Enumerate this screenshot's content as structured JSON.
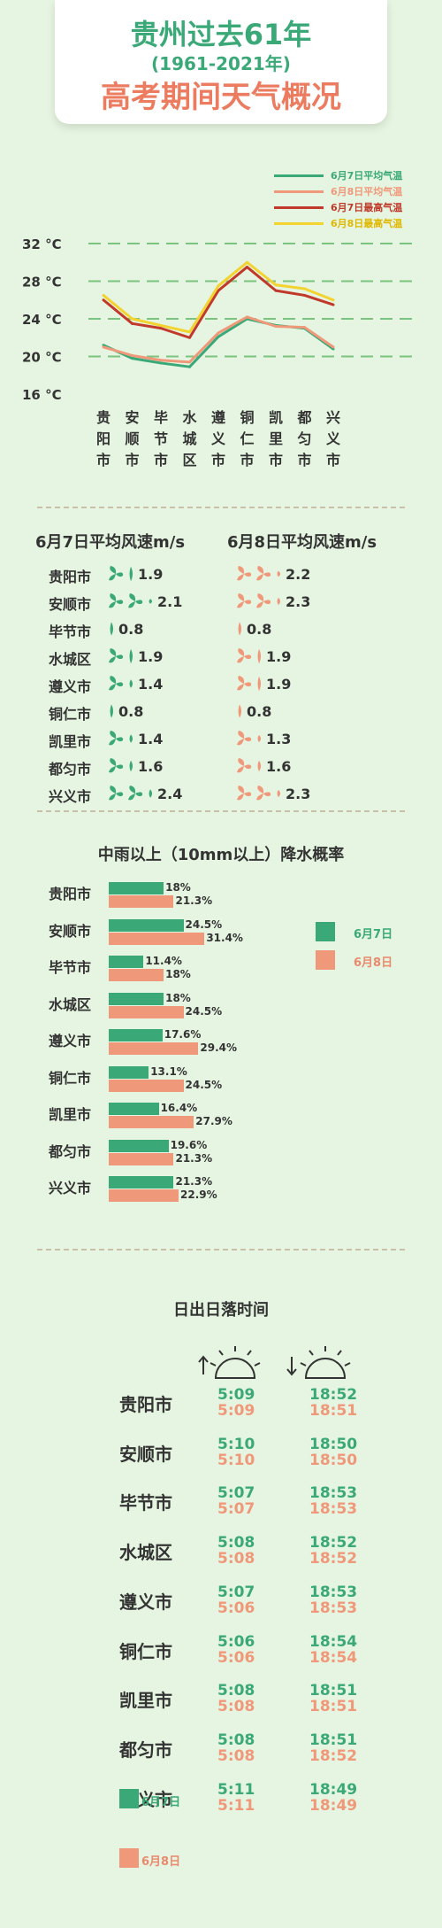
{
  "title": {
    "line1": "贵州过去61年",
    "line2": "(1961-2021年)",
    "line3": "高考期间天气概况"
  },
  "colors": {
    "green": "#3aa877",
    "orange": "#e98a6d",
    "red": "#c0392b",
    "yellow": "#f2d330"
  },
  "chart_data": [
    {
      "type": "line",
      "categories": [
        "贵阳市",
        "安顺市",
        "毕节市",
        "水城区",
        "遵义市",
        "铜仁市",
        "凯里市",
        "都匀市",
        "兴义市"
      ],
      "y_ticks": [
        "32 °C",
        "28 °C",
        "24 °C",
        "20 °C",
        "16 °C"
      ],
      "ylim": [
        16,
        32
      ],
      "grid": true,
      "legend_position": "top-right",
      "series": [
        {
          "name": "6月7日平均气温",
          "color": "#3aa877",
          "values": [
            21.2,
            19.8,
            19.3,
            18.9,
            22.1,
            24.0,
            23.3,
            23.0,
            20.8
          ]
        },
        {
          "name": "6月8日平均气温",
          "color": "#f0987a",
          "values": [
            21.0,
            20.1,
            19.6,
            19.4,
            22.5,
            24.2,
            23.2,
            23.1,
            21.0
          ]
        },
        {
          "name": "6月7日最高气温",
          "color": "#c0392b",
          "values": [
            26.0,
            23.5,
            23.0,
            22.0,
            27.0,
            29.5,
            27.0,
            26.5,
            25.5
          ]
        },
        {
          "name": "6月8日最高气温",
          "color": "#f2d330",
          "values": [
            26.5,
            24.0,
            23.3,
            22.6,
            27.5,
            30.0,
            27.6,
            27.2,
            26.0
          ]
        }
      ]
    },
    {
      "type": "table",
      "title_a": "6月7日平均风速m/s",
      "title_b": "6月8日平均风速m/s",
      "series": [
        {
          "name": "6月7日平均风速m/s",
          "values": [
            "1.9",
            "2.1",
            "0.8",
            "1.9",
            "1.4",
            "0.8",
            "1.4",
            "1.6",
            "2.4"
          ]
        },
        {
          "name": "6月8日平均风速m/s",
          "values": [
            "2.2",
            "2.3",
            "0.8",
            "1.9",
            "1.9",
            "0.8",
            "1.3",
            "1.6",
            "2.3"
          ]
        }
      ],
      "categories": [
        "贵阳市",
        "安顺市",
        "毕节市",
        "水城区",
        "遵义市",
        "铜仁市",
        "凯里市",
        "都匀市",
        "兴义市"
      ]
    },
    {
      "type": "bar",
      "title": "中雨以上（10mm以上）降水概率",
      "categories": [
        "贵阳市",
        "安顺市",
        "毕节市",
        "水城区",
        "遵义市",
        "铜仁市",
        "凯里市",
        "都匀市",
        "兴义市"
      ],
      "series": [
        {
          "name": "6月7日",
          "color": "#3aa877",
          "values": [
            18,
            24.5,
            11.4,
            18,
            17.6,
            13.1,
            16.4,
            19.6,
            21.3
          ],
          "labels": [
            "18%",
            "24.5%",
            "11.4%",
            "18%",
            "17.6%",
            "13.1%",
            "16.4%",
            "19.6%",
            "21.3%"
          ]
        },
        {
          "name": "6月8日",
          "color": "#f0987a",
          "values": [
            21.3,
            31.4,
            18,
            24.5,
            29.4,
            24.5,
            27.9,
            21.3,
            22.9
          ],
          "labels": [
            "21.3%",
            "31.4%",
            "18%",
            "24.5%",
            "29.4%",
            "24.5%",
            "27.9%",
            "21.3%",
            "22.9%"
          ]
        }
      ],
      "legend_position": "right"
    },
    {
      "type": "table",
      "title": "日出日落时间",
      "categories": [
        "贵阳市",
        "安顺市",
        "毕节市",
        "水城区",
        "遵义市",
        "铜仁市",
        "凯里市",
        "都匀市",
        "兴义市"
      ],
      "series": [
        {
          "name": "6月7日",
          "sunrise": [
            "5:09",
            "5:10",
            "5:07",
            "5:08",
            "5:07",
            "5:06",
            "5:08",
            "5:08",
            "5:11"
          ],
          "sunset": [
            "18:52",
            "18:50",
            "18:53",
            "18:52",
            "18:53",
            "18:54",
            "18:51",
            "18:51",
            "18:49"
          ]
        },
        {
          "name": "6月8日",
          "sunrise": [
            "5:09",
            "5:10",
            "5:07",
            "5:08",
            "5:06",
            "5:06",
            "5:08",
            "5:08",
            "5:11"
          ],
          "sunset": [
            "18:51",
            "18:50",
            "18:53",
            "18:52",
            "18:53",
            "18:54",
            "18:51",
            "18:52",
            "18:49"
          ]
        }
      ],
      "icons": [
        "sunrise-icon",
        "sunset-icon"
      ]
    }
  ]
}
